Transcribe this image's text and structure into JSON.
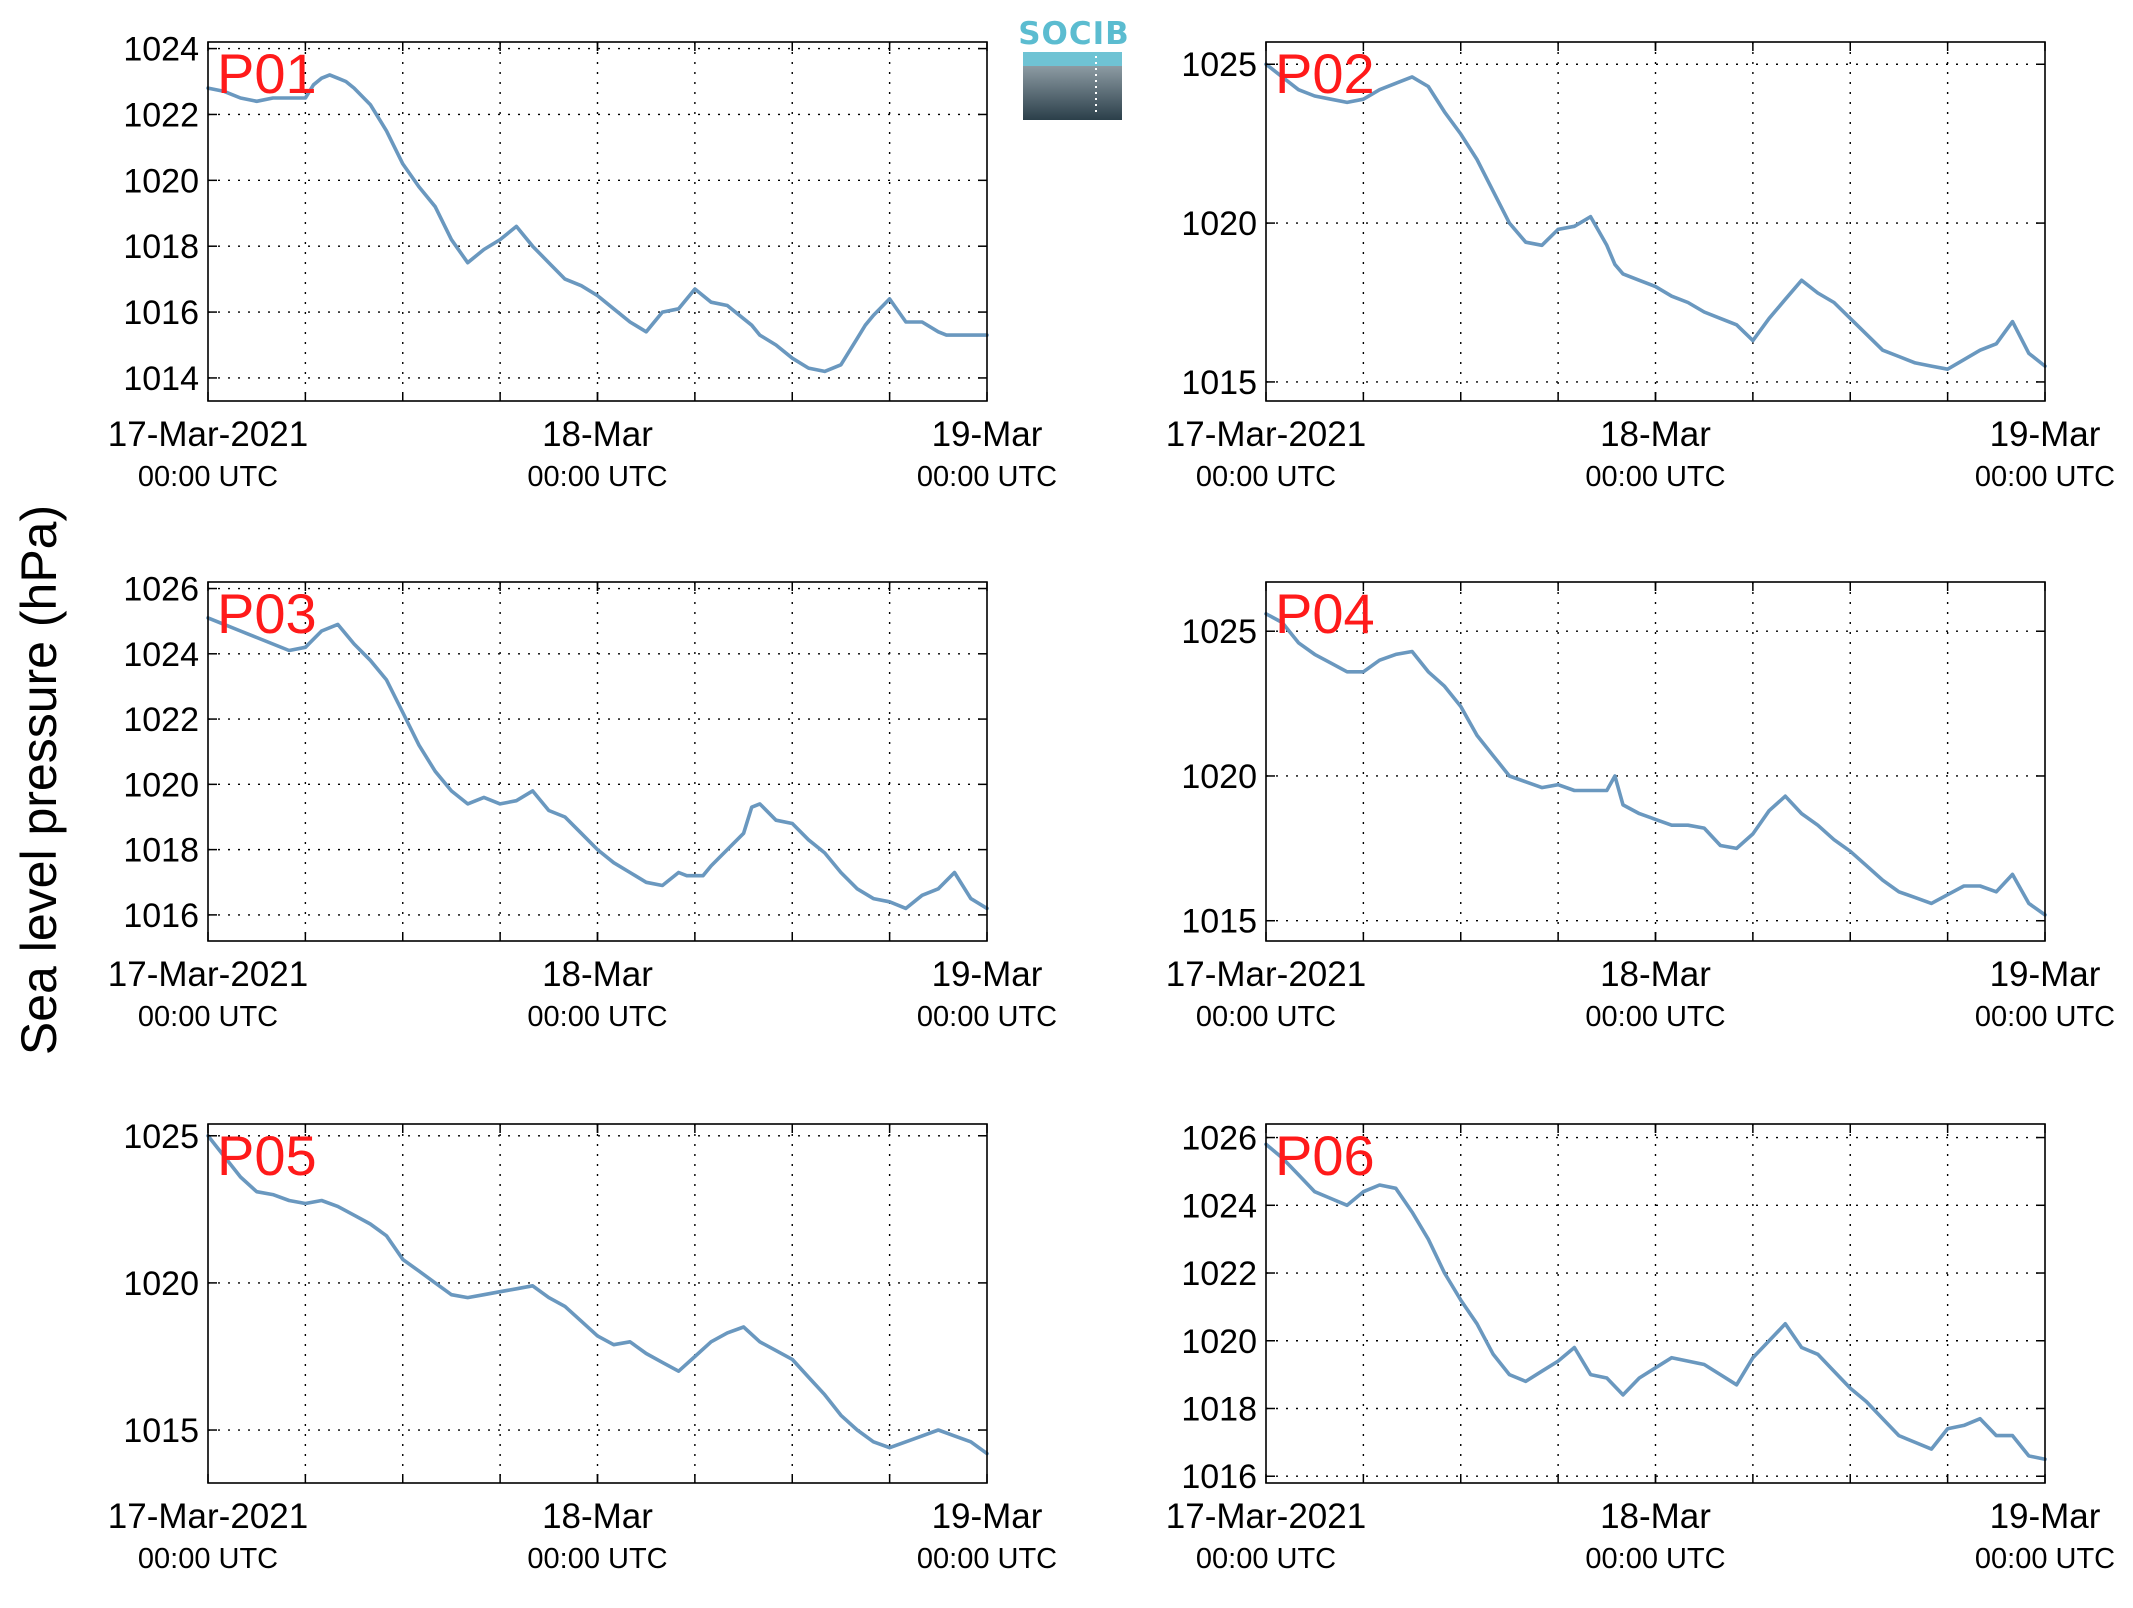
{
  "ylabel": "Sea level pressure (hPa)",
  "logo": {
    "text": "SOCIB"
  },
  "colors": {
    "line": "#6a98bf",
    "panel_label": "#ff1a1a",
    "axes": "#000000",
    "grid": "#000000",
    "logo_top": "#5bbcd0",
    "logo_bottom": "#2b3f4a"
  },
  "x_axis": {
    "range_hours": [
      0,
      48
    ],
    "ticks": [
      {
        "hours": 0,
        "line1": "17-Mar-2021",
        "line2": "00:00 UTC"
      },
      {
        "hours": 24,
        "line1": "18-Mar",
        "line2": "00:00 UTC"
      },
      {
        "hours": 48,
        "line1": "19-Mar",
        "line2": "00:00 UTC"
      }
    ],
    "grid_hours": [
      6,
      12,
      18,
      24,
      30,
      36,
      42
    ]
  },
  "chart_data": [
    {
      "type": "line",
      "label": "P01",
      "ylim": [
        1013.3,
        1024.2
      ],
      "yticks": [
        1014,
        1016,
        1018,
        1020,
        1022,
        1024
      ],
      "grid": true,
      "x": [
        0,
        1,
        2,
        3,
        4,
        5,
        6,
        6.5,
        7,
        7.5,
        8,
        8.5,
        9,
        10,
        11,
        12,
        13,
        14,
        15,
        16,
        17,
        18,
        19,
        20,
        21,
        22,
        23,
        24,
        25,
        26,
        27,
        28,
        29,
        30,
        31,
        32,
        33,
        33.5,
        34,
        35,
        36,
        37,
        38,
        39,
        40,
        40.5,
        41,
        42,
        43,
        44,
        45,
        45.5,
        46,
        46.5,
        47,
        48
      ],
      "y": [
        1022.8,
        1022.7,
        1022.5,
        1022.4,
        1022.5,
        1022.5,
        1022.5,
        1022.9,
        1023.1,
        1023.2,
        1023.1,
        1023.0,
        1022.8,
        1022.3,
        1021.5,
        1020.5,
        1019.8,
        1019.2,
        1018.2,
        1017.5,
        1017.9,
        1018.2,
        1018.6,
        1018.0,
        1017.5,
        1017.0,
        1016.8,
        1016.5,
        1016.1,
        1015.7,
        1015.4,
        1016.0,
        1016.1,
        1016.7,
        1016.3,
        1016.2,
        1015.8,
        1015.6,
        1015.3,
        1015.0,
        1014.6,
        1014.3,
        1014.2,
        1014.4,
        1015.2,
        1015.6,
        1015.9,
        1016.4,
        1015.7,
        1015.7,
        1015.4,
        1015.3,
        1015.3,
        1015.3,
        1015.3,
        1015.3
      ]
    },
    {
      "type": "line",
      "label": "P02",
      "ylim": [
        1014.4,
        1025.7
      ],
      "yticks": [
        1015,
        1020,
        1025
      ],
      "grid": true,
      "x": [
        0,
        1,
        2,
        3,
        4,
        5,
        6,
        7,
        8,
        9,
        10,
        11,
        12,
        13,
        14,
        15,
        16,
        17,
        18,
        19,
        20,
        21,
        21.5,
        22,
        23,
        24,
        25,
        26,
        27,
        28,
        29,
        30,
        31,
        32,
        33,
        34,
        35,
        36,
        37,
        38,
        39,
        40,
        41,
        42,
        43,
        44,
        45,
        46,
        47,
        48
      ],
      "y": [
        1025.0,
        1024.6,
        1024.2,
        1024.0,
        1023.9,
        1023.8,
        1023.9,
        1024.2,
        1024.4,
        1024.6,
        1024.3,
        1023.5,
        1022.8,
        1022.0,
        1021.0,
        1020.0,
        1019.4,
        1019.3,
        1019.8,
        1019.9,
        1020.2,
        1019.3,
        1018.7,
        1018.4,
        1018.2,
        1018.0,
        1017.7,
        1017.5,
        1017.2,
        1017.0,
        1016.8,
        1016.3,
        1017.0,
        1017.6,
        1018.2,
        1017.8,
        1017.5,
        1017.0,
        1016.5,
        1016.0,
        1015.8,
        1015.6,
        1015.5,
        1015.4,
        1015.7,
        1016.0,
        1016.2,
        1016.9,
        1015.9,
        1015.5
      ]
    },
    {
      "type": "line",
      "label": "P03",
      "ylim": [
        1015.2,
        1026.2
      ],
      "yticks": [
        1016,
        1018,
        1020,
        1022,
        1024,
        1026
      ],
      "grid": true,
      "x": [
        0,
        1,
        2,
        3,
        4,
        5,
        6,
        7,
        8,
        9,
        10,
        11,
        12,
        13,
        14,
        15,
        16,
        17,
        18,
        19,
        20,
        21,
        22,
        23,
        24,
        25,
        26,
        27,
        28,
        29,
        29.5,
        30,
        30.5,
        31,
        32,
        33,
        33.5,
        34,
        35,
        36,
        37,
        38,
        39,
        40,
        41,
        42,
        43,
        44,
        45,
        46,
        47,
        48
      ],
      "y": [
        1025.1,
        1024.9,
        1024.7,
        1024.5,
        1024.3,
        1024.1,
        1024.2,
        1024.7,
        1024.9,
        1024.3,
        1023.8,
        1023.2,
        1022.2,
        1021.2,
        1020.4,
        1019.8,
        1019.4,
        1019.6,
        1019.4,
        1019.5,
        1019.8,
        1019.2,
        1019.0,
        1018.5,
        1018.0,
        1017.6,
        1017.3,
        1017.0,
        1016.9,
        1017.3,
        1017.2,
        1017.2,
        1017.2,
        1017.5,
        1018.0,
        1018.5,
        1019.3,
        1019.4,
        1018.9,
        1018.8,
        1018.3,
        1017.9,
        1017.3,
        1016.8,
        1016.5,
        1016.4,
        1016.2,
        1016.6,
        1016.8,
        1017.3,
        1016.5,
        1016.2
      ]
    },
    {
      "type": "line",
      "label": "P04",
      "ylim": [
        1014.3,
        1026.7
      ],
      "yticks": [
        1015,
        1020,
        1025
      ],
      "grid": true,
      "x": [
        0,
        1,
        2,
        3,
        4,
        5,
        6,
        7,
        8,
        9,
        10,
        11,
        12,
        13,
        14,
        15,
        16,
        17,
        18,
        19,
        20,
        21,
        21.5,
        22,
        23,
        24,
        25,
        26,
        27,
        28,
        29,
        30,
        31,
        32,
        33,
        34,
        35,
        36,
        37,
        38,
        39,
        40,
        41,
        42,
        43,
        44,
        45,
        46,
        47,
        48
      ],
      "y": [
        1025.6,
        1025.3,
        1024.6,
        1024.2,
        1023.9,
        1023.6,
        1023.6,
        1024.0,
        1024.2,
        1024.3,
        1023.6,
        1023.1,
        1022.4,
        1021.4,
        1020.7,
        1020.0,
        1019.8,
        1019.6,
        1019.7,
        1019.5,
        1019.5,
        1019.5,
        1020.0,
        1019.0,
        1018.7,
        1018.5,
        1018.3,
        1018.3,
        1018.2,
        1017.6,
        1017.5,
        1018.0,
        1018.8,
        1019.3,
        1018.7,
        1018.3,
        1017.8,
        1017.4,
        1016.9,
        1016.4,
        1016.0,
        1015.8,
        1015.6,
        1015.9,
        1016.2,
        1016.2,
        1016.0,
        1016.6,
        1015.6,
        1015.2
      ]
    },
    {
      "type": "line",
      "label": "P05",
      "ylim": [
        1013.2,
        1025.4
      ],
      "yticks": [
        1015,
        1020,
        1025
      ],
      "grid": true,
      "x": [
        0,
        1,
        2,
        3,
        4,
        5,
        6,
        7,
        8,
        9,
        10,
        11,
        12,
        13,
        14,
        15,
        16,
        17,
        18,
        19,
        20,
        21,
        22,
        23,
        24,
        25,
        26,
        27,
        28,
        29,
        30,
        31,
        32,
        33,
        34,
        35,
        36,
        37,
        38,
        39,
        40,
        41,
        42,
        43,
        44,
        45,
        46,
        47,
        48
      ],
      "y": [
        1025.0,
        1024.3,
        1023.6,
        1023.1,
        1023.0,
        1022.8,
        1022.7,
        1022.8,
        1022.6,
        1022.3,
        1022.0,
        1021.6,
        1020.8,
        1020.4,
        1020.0,
        1019.6,
        1019.5,
        1019.6,
        1019.7,
        1019.8,
        1019.9,
        1019.5,
        1019.2,
        1018.7,
        1018.2,
        1017.9,
        1018.0,
        1017.6,
        1017.3,
        1017.0,
        1017.5,
        1018.0,
        1018.3,
        1018.5,
        1018.0,
        1017.7,
        1017.4,
        1016.8,
        1016.2,
        1015.5,
        1015.0,
        1014.6,
        1014.4,
        1014.6,
        1014.8,
        1015.0,
        1014.8,
        1014.6,
        1014.2
      ]
    },
    {
      "type": "line",
      "label": "P06",
      "ylim": [
        1015.8,
        1026.4
      ],
      "yticks": [
        1016,
        1018,
        1020,
        1022,
        1024,
        1026
      ],
      "grid": true,
      "x": [
        0,
        1,
        2,
        3,
        4,
        5,
        6,
        7,
        8,
        9,
        10,
        11,
        12,
        13,
        14,
        15,
        16,
        17,
        18,
        19,
        20,
        21,
        22,
        23,
        24,
        25,
        26,
        27,
        28,
        29,
        30,
        31,
        32,
        33,
        34,
        35,
        36,
        37,
        38,
        39,
        40,
        41,
        42,
        43,
        44,
        45,
        46,
        47,
        48
      ],
      "y": [
        1025.8,
        1025.4,
        1024.9,
        1024.4,
        1024.2,
        1024.0,
        1024.4,
        1024.6,
        1024.5,
        1023.8,
        1023.0,
        1022.0,
        1021.2,
        1020.5,
        1019.6,
        1019.0,
        1018.8,
        1019.1,
        1019.4,
        1019.8,
        1019.0,
        1018.9,
        1018.4,
        1018.9,
        1019.2,
        1019.5,
        1019.4,
        1019.3,
        1019.0,
        1018.7,
        1019.5,
        1020.0,
        1020.5,
        1019.8,
        1019.6,
        1019.1,
        1018.6,
        1018.2,
        1017.7,
        1017.2,
        1017.0,
        1016.8,
        1017.4,
        1017.5,
        1017.7,
        1017.2,
        1017.2,
        1016.6,
        1016.5
      ]
    }
  ]
}
